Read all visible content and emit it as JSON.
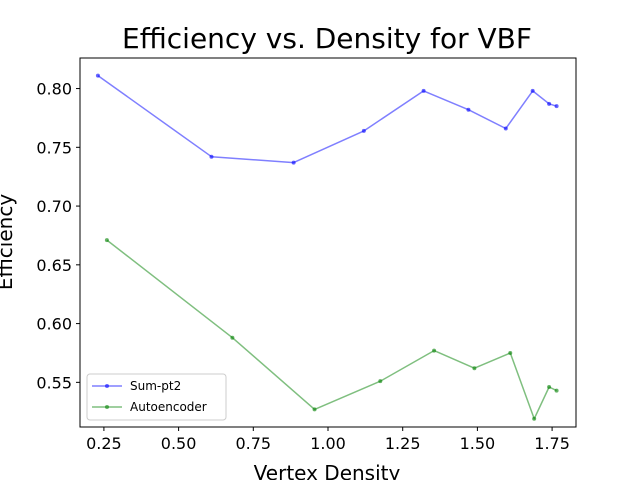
{
  "chart_data": {
    "type": "line",
    "title": "Efficiency vs. Density for VBF",
    "xlabel": "Vertex Density",
    "ylabel": "Efficiency",
    "xlim": [
      0.17,
      1.83
    ],
    "ylim": [
      0.512,
      0.826
    ],
    "xticks": [
      "0.25",
      "0.50",
      "0.75",
      "1.00",
      "1.25",
      "1.50",
      "1.75"
    ],
    "xtick_values": [
      0.25,
      0.5,
      0.75,
      1.0,
      1.25,
      1.5,
      1.75
    ],
    "yticks": [
      "0.55",
      "0.60",
      "0.65",
      "0.70",
      "0.75",
      "0.80"
    ],
    "ytick_values": [
      0.55,
      0.6,
      0.65,
      0.7,
      0.75,
      0.8
    ],
    "grid": false,
    "legend_position": "lower-left",
    "series": [
      {
        "name": "Sum-pt2",
        "color": "#0000ff",
        "x": [
          0.23,
          0.61,
          0.885,
          1.12,
          1.32,
          1.47,
          1.595,
          1.685,
          1.74,
          1.765
        ],
        "y": [
          0.811,
          0.742,
          0.737,
          0.764,
          0.798,
          0.782,
          0.766,
          0.798,
          0.787,
          0.785
        ]
      },
      {
        "name": "Autoencoder",
        "color": "#008000",
        "x": [
          0.26,
          0.68,
          0.955,
          1.175,
          1.355,
          1.49,
          1.61,
          1.69,
          1.74,
          1.765
        ],
        "y": [
          0.671,
          0.588,
          0.527,
          0.551,
          0.577,
          0.562,
          0.575,
          0.519,
          0.546,
          0.543
        ]
      }
    ]
  }
}
